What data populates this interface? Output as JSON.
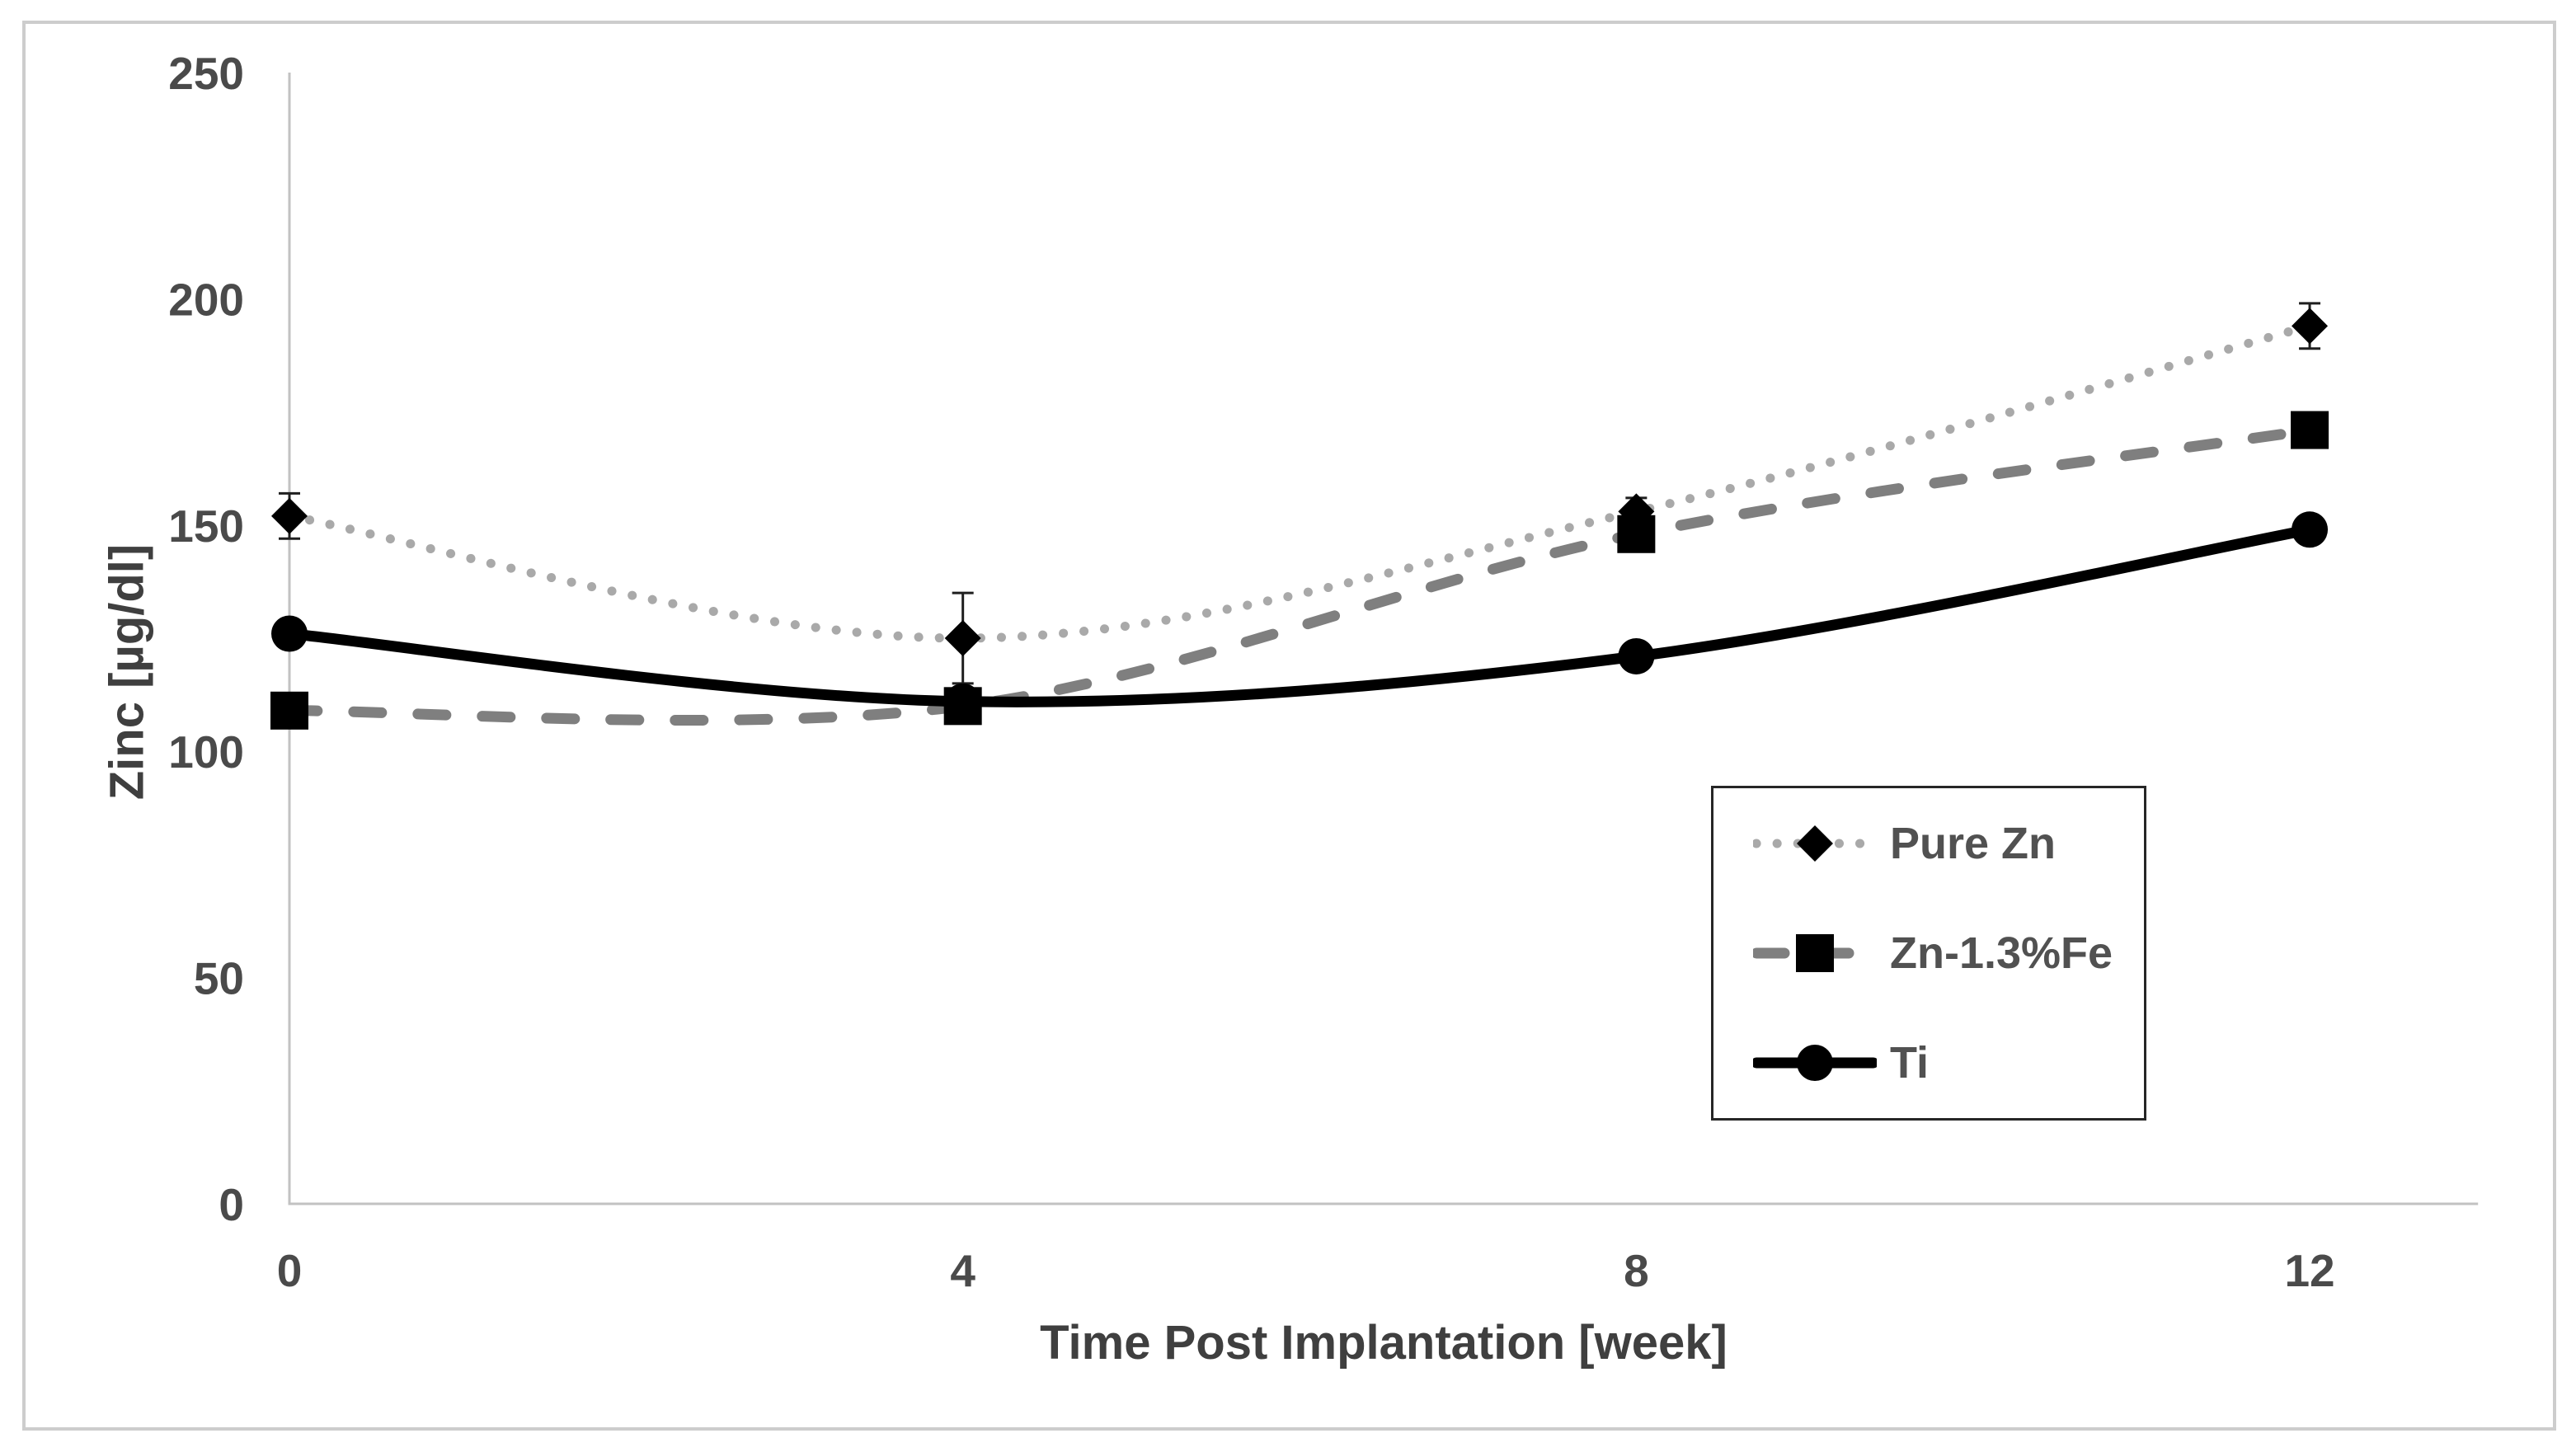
{
  "chart_data": {
    "type": "line",
    "title": "",
    "xlabel": "Time Post Implantation [week]",
    "ylabel": "Zinc [µg/dl]",
    "x": [
      0,
      4,
      8,
      12
    ],
    "xticks": [
      0,
      4,
      8,
      12
    ],
    "yticks": [
      0,
      50,
      100,
      150,
      200,
      250
    ],
    "xlim": [
      0,
      13
    ],
    "ylim": [
      0,
      250
    ],
    "grid": false,
    "legend_position": "inside-bottom-right",
    "series": [
      {
        "name": "Pure Zn",
        "values": [
          152,
          125,
          153,
          194
        ],
        "errors": [
          5,
          10,
          3,
          5
        ],
        "line_style": "dotted",
        "line_color": "#A9A9A9",
        "marker": "diamond",
        "marker_color": "#000000"
      },
      {
        "name": "Zn-1.3%Fe",
        "values": [
          109,
          110,
          148,
          171
        ],
        "errors": null,
        "line_style": "dashed",
        "line_color": "#7F7F7F",
        "marker": "square",
        "marker_color": "#000000"
      },
      {
        "name": "Ti",
        "values": [
          126,
          111,
          121,
          149
        ],
        "errors": null,
        "line_style": "solid",
        "line_color": "#000000",
        "marker": "circle",
        "marker_color": "#000000"
      }
    ],
    "style": {
      "axis_line_color": "#C2C2C2",
      "tick_text_color": "#4a4a4a",
      "title_text_color": "#3f3f3f",
      "error_bar_color": "#1f1f1f",
      "frame_color": "#CDCDCD",
      "background": "#ffffff"
    }
  }
}
